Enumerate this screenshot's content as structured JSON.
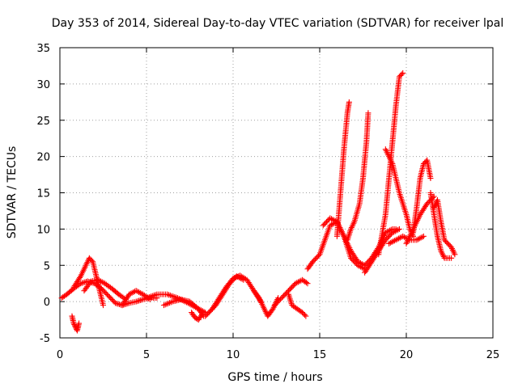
{
  "chart_data": {
    "type": "scatter",
    "title": "Day 353 of 2014, Sidereal Day-to-day VTEC variation (SDTVAR) for receiver lpal",
    "xlabel": "GPS time / hours",
    "ylabel": "SDTVAR / TECUs",
    "xlim": [
      0,
      25
    ],
    "ylim": [
      -5,
      35
    ],
    "xticks": [
      "0",
      "5",
      "10",
      "15",
      "20",
      "25"
    ],
    "yticks": [
      "-5",
      "0",
      "5",
      "10",
      "15",
      "20",
      "25",
      "30",
      "35"
    ],
    "grid": true,
    "marker": "+",
    "color": "#ff0000",
    "series": [
      {
        "name": "t0",
        "x": [
          0.1,
          0.4,
          0.8,
          1.2,
          1.6,
          2.0,
          2.4,
          2.8,
          3.2,
          3.6,
          4.0,
          4.4,
          4.8,
          5.2,
          5.6
        ],
        "y": [
          0.5,
          1.0,
          1.8,
          2.5,
          2.8,
          2.5,
          1.8,
          0.8,
          -0.2,
          -0.5,
          -0.2,
          0.0,
          0.3,
          0.5,
          0.5
        ]
      },
      {
        "name": "t1",
        "x": [
          0.7,
          0.8,
          0.9,
          1.0,
          1.1
        ],
        "y": [
          -2.0,
          -3.0,
          -3.5,
          -4.0,
          -3.0
        ]
      },
      {
        "name": "t2",
        "x": [
          0.8,
          1.2,
          1.5,
          1.7,
          1.9,
          2.1,
          2.3,
          2.5
        ],
        "y": [
          2.0,
          3.5,
          5.0,
          6.0,
          5.5,
          3.5,
          1.5,
          -0.5
        ]
      },
      {
        "name": "t3",
        "x": [
          1.4,
          1.8,
          2.2,
          2.6,
          3.0,
          3.4,
          3.8
        ],
        "y": [
          1.5,
          2.8,
          3.0,
          2.5,
          1.8,
          1.0,
          0.3
        ]
      },
      {
        "name": "t4",
        "x": [
          3.6,
          4.0,
          4.4,
          4.8,
          5.2
        ],
        "y": [
          -0.5,
          1.0,
          1.5,
          1.0,
          0.3
        ]
      },
      {
        "name": "t5",
        "x": [
          5.0,
          5.6,
          6.2,
          6.8,
          7.4,
          8.0,
          8.4
        ],
        "y": [
          0.5,
          1.0,
          1.0,
          0.5,
          -0.2,
          -1.0,
          -1.5
        ]
      },
      {
        "name": "t6",
        "x": [
          6.0,
          6.5,
          7.0,
          7.5,
          8.0,
          8.3
        ],
        "y": [
          -0.5,
          0.0,
          0.3,
          0.0,
          -1.0,
          -2.0
        ]
      },
      {
        "name": "t7",
        "x": [
          7.6,
          7.8,
          8.0,
          8.2
        ],
        "y": [
          -1.5,
          -2.2,
          -2.5,
          -1.8
        ]
      },
      {
        "name": "t8",
        "x": [
          8.4,
          8.8,
          9.2,
          9.6,
          10.0,
          10.4,
          10.8,
          11.2,
          11.6
        ],
        "y": [
          -2.0,
          -1.0,
          0.5,
          2.0,
          3.2,
          3.6,
          3.0,
          1.5,
          0.0
        ]
      },
      {
        "name": "t9",
        "x": [
          8.6,
          9.0,
          9.4,
          9.8,
          10.2,
          10.6
        ],
        "y": [
          -1.5,
          -0.5,
          1.0,
          2.5,
          3.5,
          3.0
        ]
      },
      {
        "name": "t10",
        "x": [
          11.2,
          11.5,
          11.8,
          12.0,
          12.3,
          12.6
        ],
        "y": [
          1.5,
          0.5,
          -1.0,
          -2.0,
          -1.0,
          0.5
        ]
      },
      {
        "name": "t11",
        "x": [
          12.4,
          12.8,
          13.2,
          13.6,
          14.0,
          14.3
        ],
        "y": [
          -0.5,
          0.5,
          1.5,
          2.5,
          3.0,
          2.5
        ]
      },
      {
        "name": "t12",
        "x": [
          13.2,
          13.4,
          13.7,
          14.0,
          14.2
        ],
        "y": [
          1.0,
          -0.5,
          -1.0,
          -1.5,
          -2.0
        ]
      },
      {
        "name": "t13",
        "x": [
          14.3,
          14.6,
          15.0,
          15.3,
          15.6,
          16.0,
          16.4,
          16.8,
          17.2,
          17.6
        ],
        "y": [
          4.5,
          5.5,
          6.5,
          8.5,
          10.5,
          11.0,
          9.0,
          6.0,
          5.0,
          4.5
        ]
      },
      {
        "name": "t14",
        "x": [
          16.0,
          16.2,
          16.4,
          16.6,
          16.7
        ],
        "y": [
          9.0,
          15.0,
          21.0,
          26.0,
          27.5
        ]
      },
      {
        "name": "t15",
        "x": [
          16.6,
          16.8,
          17.0,
          17.3,
          17.5,
          17.7,
          17.8
        ],
        "y": [
          8.5,
          10.0,
          11.0,
          13.5,
          17.0,
          22.0,
          26.0
        ]
      },
      {
        "name": "t16",
        "x": [
          15.2,
          15.6,
          16.0,
          16.4,
          16.8,
          17.2,
          17.6
        ],
        "y": [
          10.5,
          11.5,
          11.0,
          9.0,
          7.0,
          5.5,
          5.0
        ]
      },
      {
        "name": "t17",
        "x": [
          17.6,
          18.0,
          18.4,
          18.8,
          19.2,
          19.4
        ],
        "y": [
          5.0,
          6.0,
          7.5,
          9.5,
          10.0,
          10.0
        ]
      },
      {
        "name": "t18",
        "x": [
          18.4,
          18.8,
          19.0,
          19.2,
          19.4,
          19.6,
          19.8
        ],
        "y": [
          6.5,
          12.0,
          17.0,
          22.0,
          27.0,
          31.0,
          31.5
        ]
      },
      {
        "name": "t19",
        "x": [
          18.8,
          19.2,
          19.6,
          20.0,
          20.2,
          20.4
        ],
        "y": [
          21.0,
          19.0,
          15.0,
          12.0,
          10.0,
          9.0
        ]
      },
      {
        "name": "t20",
        "x": [
          19.0,
          19.4,
          19.8,
          20.2,
          20.6,
          21.0
        ],
        "y": [
          8.0,
          8.5,
          9.0,
          8.5,
          8.5,
          9.0
        ]
      },
      {
        "name": "t21",
        "x": [
          20.4,
          20.6,
          20.8,
          21.0,
          21.2,
          21.4
        ],
        "y": [
          9.5,
          13.0,
          17.0,
          19.0,
          19.5,
          17.0
        ]
      },
      {
        "name": "t22",
        "x": [
          21.4,
          21.6,
          21.8,
          22.0,
          22.2,
          22.4,
          22.6
        ],
        "y": [
          15.0,
          12.0,
          9.0,
          7.0,
          6.0,
          6.0,
          6.0
        ]
      },
      {
        "name": "t23",
        "x": [
          21.6,
          21.8,
          22.0,
          22.2,
          22.4,
          22.6,
          22.8
        ],
        "y": [
          13.0,
          14.0,
          11.0,
          8.5,
          8.0,
          7.5,
          6.5
        ]
      },
      {
        "name": "t24",
        "x": [
          20.0,
          20.4,
          20.8,
          21.2,
          21.6
        ],
        "y": [
          8.0,
          10.0,
          12.0,
          13.5,
          14.5
        ]
      },
      {
        "name": "t25",
        "x": [
          17.6,
          18.0,
          18.4,
          18.8,
          19.2,
          19.6
        ],
        "y": [
          4.0,
          5.5,
          7.0,
          8.5,
          9.5,
          10.0
        ]
      }
    ]
  }
}
